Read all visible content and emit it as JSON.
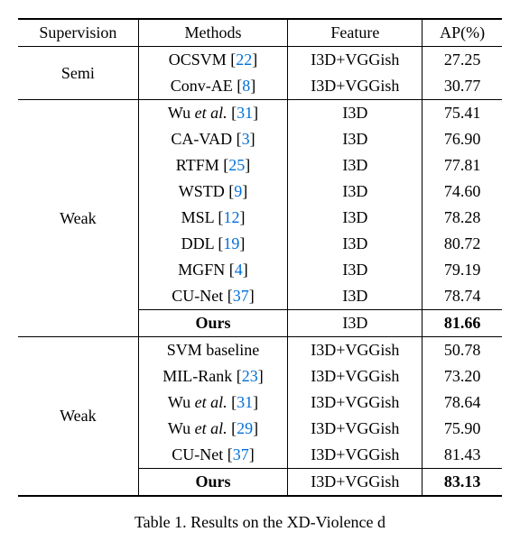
{
  "headers": {
    "supervision": "Supervision",
    "methods": "Methods",
    "feature": "Feature",
    "ap": "AP(%)"
  },
  "sections": [
    {
      "supervision": "Semi",
      "rows": [
        {
          "method_pre": "OCSVM [",
          "cite": "22",
          "method_post": "]",
          "feature": "I3D+VGGish",
          "ap": "27.25",
          "bold": false,
          "ital": false
        },
        {
          "method_pre": "Conv-AE  [",
          "cite": "8",
          "method_post": "]",
          "feature": "I3D+VGGish",
          "ap": "30.77",
          "bold": false,
          "ital": false
        }
      ]
    },
    {
      "supervision": "Weak",
      "rows": [
        {
          "method_pre": "Wu ",
          "ital_text": "et al.",
          "method_mid": " [",
          "cite": "31",
          "method_post": "]",
          "feature": "I3D",
          "ap": "75.41",
          "bold": false,
          "ital": true
        },
        {
          "method_pre": "CA-VAD [",
          "cite": "3",
          "method_post": "]",
          "feature": "I3D",
          "ap": "76.90",
          "bold": false,
          "ital": false
        },
        {
          "method_pre": "RTFM [",
          "cite": "25",
          "method_post": "]",
          "feature": "I3D",
          "ap": "77.81",
          "bold": false,
          "ital": false
        },
        {
          "method_pre": "WSTD [",
          "cite": "9",
          "method_post": "]",
          "feature": "I3D",
          "ap": "74.60",
          "bold": false,
          "ital": false
        },
        {
          "method_pre": "MSL [",
          "cite": "12",
          "method_post": "]",
          "feature": "I3D",
          "ap": "78.28",
          "bold": false,
          "ital": false
        },
        {
          "method_pre": "DDL [",
          "cite": "19",
          "method_post": "]",
          "feature": "I3D",
          "ap": "80.72",
          "bold": false,
          "ital": false
        },
        {
          "method_pre": "MGFN [",
          "cite": "4",
          "method_post": "]",
          "feature": "I3D",
          "ap": "79.19",
          "bold": false,
          "ital": false
        },
        {
          "method_pre": "CU-Net [",
          "cite": "37",
          "method_post": "]",
          "feature": "I3D",
          "ap": "78.74",
          "bold": false,
          "ital": false
        },
        {
          "method_pre": "Ours",
          "cite": "",
          "method_post": "",
          "feature": "I3D",
          "ap": "81.66",
          "bold": true,
          "ital": false
        }
      ]
    },
    {
      "supervision": "Weak",
      "rows": [
        {
          "method_pre": "SVM baseline",
          "cite": "",
          "method_post": "",
          "feature": "I3D+VGGish",
          "ap": "50.78",
          "bold": false,
          "ital": false
        },
        {
          "method_pre": "MIL-Rank [",
          "cite": "23",
          "method_post": "]",
          "feature": "I3D+VGGish",
          "ap": "73.20",
          "bold": false,
          "ital": false
        },
        {
          "method_pre": "Wu ",
          "ital_text": "et al.",
          "method_mid": " [",
          "cite": "31",
          "method_post": "]",
          "feature": "I3D+VGGish",
          "ap": "78.64",
          "bold": false,
          "ital": true
        },
        {
          "method_pre": "Wu ",
          "ital_text": "et al.",
          "method_mid": " [",
          "cite": "29",
          "method_post": "]",
          "feature": "I3D+VGGish",
          "ap": "75.90",
          "bold": false,
          "ital": true
        },
        {
          "method_pre": "CU-Net [",
          "cite": "37",
          "method_post": "]",
          "feature": "I3D+VGGish",
          "ap": "81.43",
          "bold": false,
          "ital": false
        },
        {
          "method_pre": "Ours",
          "cite": "",
          "method_post": "",
          "feature": "I3D+VGGish",
          "ap": "83.13",
          "bold": true,
          "ital": false
        }
      ]
    }
  ],
  "caption_prefix": "Table 1. Results on the XD-Violence d",
  "colors": {
    "cite": "#0070d8",
    "text": "#000000",
    "background": "#ffffff",
    "border": "#000000"
  },
  "font": {
    "family": "Times New Roman",
    "size_pt": 14
  }
}
